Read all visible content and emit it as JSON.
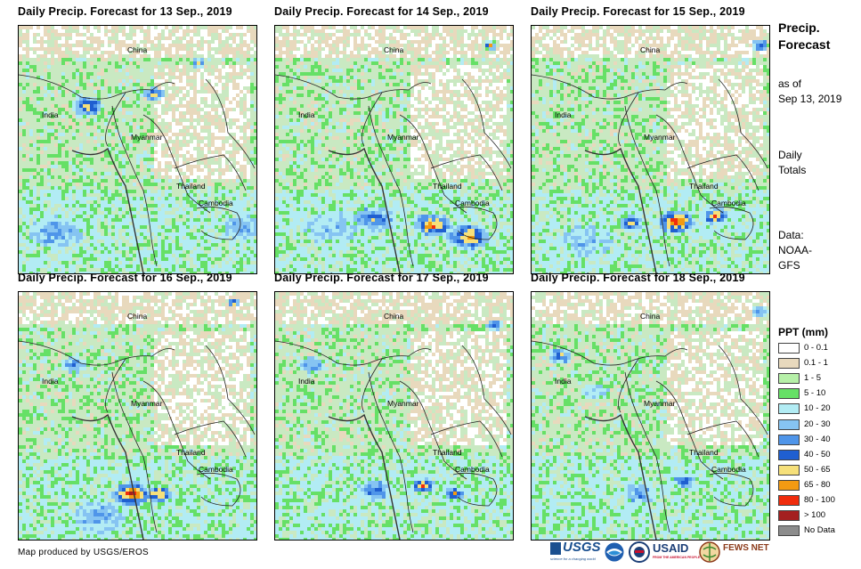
{
  "panels": [
    {
      "title": "Daily Precip. Forecast for 13 Sep., 2019",
      "labels": {
        "china": "China",
        "india": "India",
        "myanmar": "Myanmar",
        "thailand": "Thailand",
        "cambodia": "Cambodia"
      }
    },
    {
      "title": "Daily Precip. Forecast for 14 Sep., 2019",
      "labels": {
        "china": "China",
        "india": "India",
        "myanmar": "Myanmar",
        "thailand": "Thailand",
        "cambodia": "Cambodia"
      }
    },
    {
      "title": "Daily Precip. Forecast for 15 Sep., 2019",
      "labels": {
        "china": "China",
        "india": "India",
        "myanmar": "Myanmar",
        "thailand": "Thailand",
        "cambodia": "Cambodia"
      }
    },
    {
      "title": "Daily Precip. Forecast for 16 Sep., 2019",
      "labels": {
        "china": "China",
        "india": "India",
        "myanmar": "Myanmar",
        "thailand": "Thailand",
        "cambodia": "Cambodia"
      }
    },
    {
      "title": "Daily Precip. Forecast for 17 Sep., 2019",
      "labels": {
        "china": "China",
        "india": "India",
        "myanmar": "Myanmar",
        "thailand": "Thailand",
        "cambodia": "Cambodia"
      }
    },
    {
      "title": "Daily Precip. Forecast for 18 Sep., 2019",
      "labels": {
        "china": "China",
        "india": "India",
        "myanmar": "Myanmar",
        "thailand": "Thailand",
        "cambodia": "Cambodia"
      }
    }
  ],
  "side": {
    "title_line1": "Precip.",
    "title_line2": "Forecast",
    "asof_line1": "as of",
    "asof_line2": "Sep 13, 2019",
    "totals_line1": "Daily",
    "totals_line2": "Totals",
    "data_line1": "Data:",
    "data_line2": "NOAA-",
    "data_line3": "GFS"
  },
  "legend": {
    "title": "PPT (mm)",
    "items": [
      {
        "label": "0 - 0.1",
        "color": "#ffffff"
      },
      {
        "label": "0.1 - 1",
        "color": "#e8d9bd"
      },
      {
        "label": "1 - 5",
        "color": "#b6f0a8"
      },
      {
        "label": "5 - 10",
        "color": "#66e066"
      },
      {
        "label": "10 - 20",
        "color": "#b2ecf4"
      },
      {
        "label": "20 - 30",
        "color": "#86c4f2"
      },
      {
        "label": "30 - 40",
        "color": "#4f95e9"
      },
      {
        "label": "40 - 50",
        "color": "#1f5fd0"
      },
      {
        "label": "50 - 65",
        "color": "#f6e07a"
      },
      {
        "label": "65 - 80",
        "color": "#f39a12"
      },
      {
        "label": "80 - 100",
        "color": "#f02c0c"
      },
      {
        "label": "> 100",
        "color": "#a42020"
      },
      {
        "label": "No Data",
        "color": "#8c8c8c"
      }
    ]
  },
  "credit": "Map produced by USGS/EROS",
  "logos": {
    "usgs": "USGS",
    "usgs_tag": "science for a changing world",
    "noaa": "NOAA",
    "usaid": "USAID",
    "usaid_tag": "FROM THE AMERICAN PEOPLE",
    "fewsnet": "FEWS NET"
  }
}
